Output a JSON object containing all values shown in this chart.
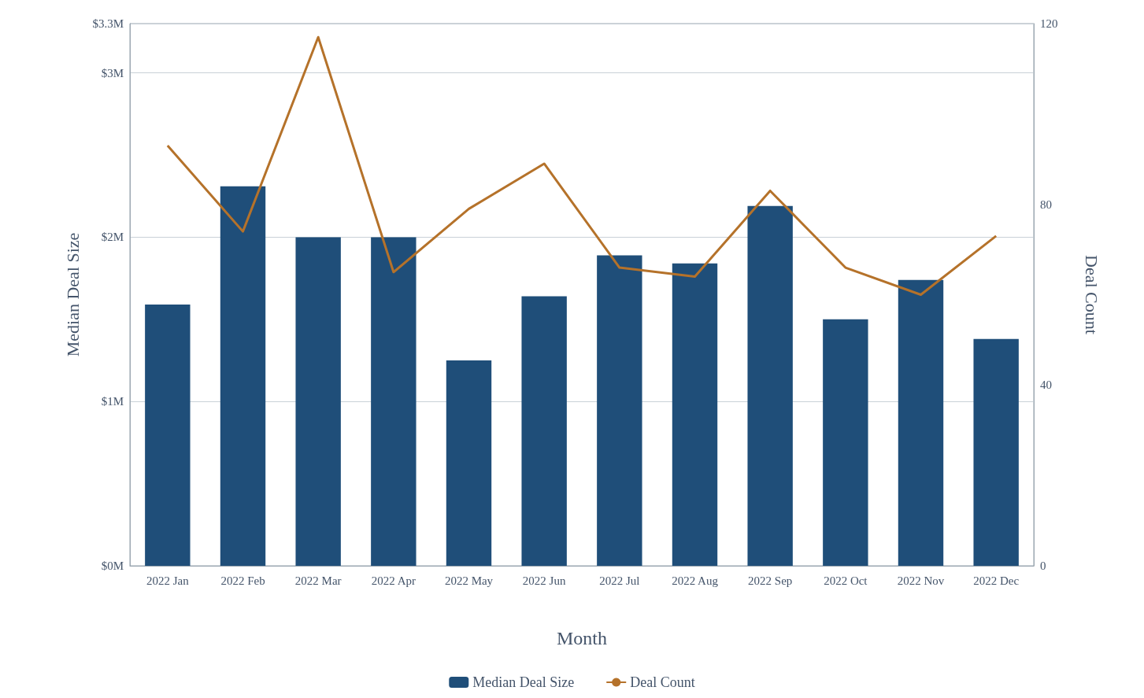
{
  "chart_data": {
    "type": "bar",
    "xlabel": "Month",
    "ylabel": "Median Deal Size",
    "y2label": "Deal Count",
    "categories": [
      "2022 Jan",
      "2022 Feb",
      "2022 Mar",
      "2022 Apr",
      "2022 May",
      "2022 Jun",
      "2022 Jul",
      "2022 Aug",
      "2022 Sep",
      "2022 Oct",
      "2022 Nov",
      "2022 Dec"
    ],
    "series": [
      {
        "name": "Median Deal Size",
        "color": "#1f4e79",
        "values": [
          1.59,
          2.31,
          2.0,
          2.0,
          1.25,
          1.64,
          1.89,
          1.84,
          2.19,
          1.5,
          1.74,
          1.38
        ]
      },
      {
        "name": "Deal Count",
        "type": "line",
        "axis": "y2",
        "color": "#b5722a",
        "values": [
          93,
          74,
          117,
          65,
          79,
          89,
          66,
          64,
          83,
          66,
          60,
          73
        ]
      }
    ],
    "ylim": [
      0,
      3.3
    ],
    "yticks": [
      {
        "value": 0,
        "label": "$0M"
      },
      {
        "value": 1,
        "label": "$1M"
      },
      {
        "value": 2,
        "label": "$2M"
      },
      {
        "value": 3,
        "label": "$3M"
      },
      {
        "value": 3.3,
        "label": "$3.3M"
      }
    ],
    "y2lim": [
      0,
      120
    ],
    "y2ticks": [
      0,
      40,
      80,
      120
    ],
    "grid": "y",
    "legend": "bottom",
    "marker": "none",
    "line_style": "solid"
  }
}
